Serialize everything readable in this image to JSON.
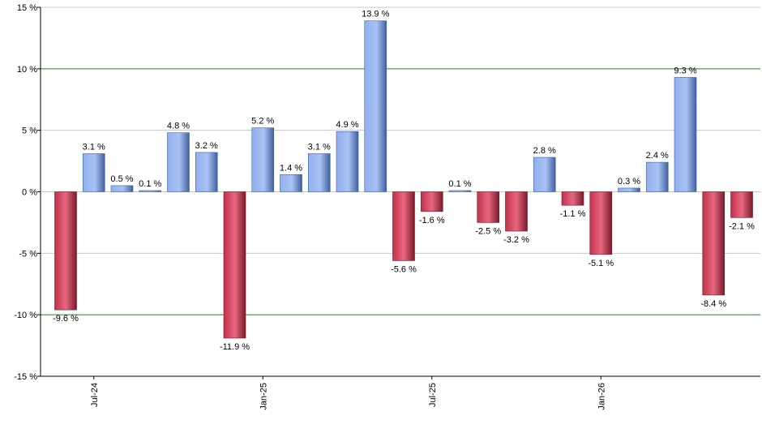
{
  "chart_data": {
    "type": "bar",
    "title": "",
    "xlabel": "",
    "ylabel": "",
    "ylim": [
      -15,
      15
    ],
    "y_tick_values": [
      -15,
      -10,
      -5,
      0,
      5,
      10,
      15
    ],
    "y_tick_labels": [
      "-15 %",
      "-10 %",
      "-5 %",
      "0 %",
      "5 %",
      "10 %",
      "15 %"
    ],
    "categories": [
      "2024-06",
      "2024-07",
      "2024-08",
      "2024-09",
      "2024-10",
      "2024-11",
      "2024-12",
      "2025-01",
      "2025-02",
      "2025-03",
      "2025-04",
      "2025-05",
      "2025-06",
      "2025-07",
      "2025-08",
      "2025-09",
      "2025-10",
      "2025-11",
      "2025-12",
      "2026-01",
      "2026-02",
      "2026-03",
      "2026-04",
      "2026-05",
      "2026-06"
    ],
    "values": [
      -9.6,
      3.1,
      0.5,
      0.1,
      4.8,
      3.2,
      -11.9,
      5.2,
      1.4,
      3.1,
      4.9,
      13.9,
      -5.6,
      -1.6,
      0.1,
      -2.5,
      -3.2,
      2.8,
      -1.1,
      -5.1,
      0.3,
      2.4,
      9.3,
      -8.4,
      -2.1
    ],
    "value_labels": [
      "-9.6 %",
      "3.1 %",
      "0.5 %",
      "0.1 %",
      "4.8 %",
      "3.2 %",
      "-11.9 %",
      "5.2 %",
      "1.4 %",
      "3.1 %",
      "4.9 %",
      "13.9 %",
      "-5.6 %",
      "-1.6 %",
      "0.1 %",
      "-2.5 %",
      "-3.2 %",
      "2.8 %",
      "-1.1 %",
      "-5.1 %",
      "0.3 %",
      "2.4 %",
      "9.3 %",
      "-8.4 %",
      "-2.1 %"
    ],
    "x_tick_labels": [
      {
        "category": "2024-07",
        "label": "Jul-24"
      },
      {
        "category": "2025-01",
        "label": "Jan-25"
      },
      {
        "category": "2025-07",
        "label": "Jul-25"
      },
      {
        "category": "2026-01",
        "label": "Jan-26"
      }
    ],
    "highlight_gridlines": [
      -10,
      10
    ],
    "grid": true,
    "legend": "none",
    "colors": {
      "positive": "#7aa0e6",
      "positive_dark": "#3f5f9e",
      "negative": "#d8405c",
      "negative_dark": "#7a1a2c",
      "grid": "#c8c8c8",
      "highlight_grid": "#2e7d32",
      "axis": "#000000"
    }
  }
}
